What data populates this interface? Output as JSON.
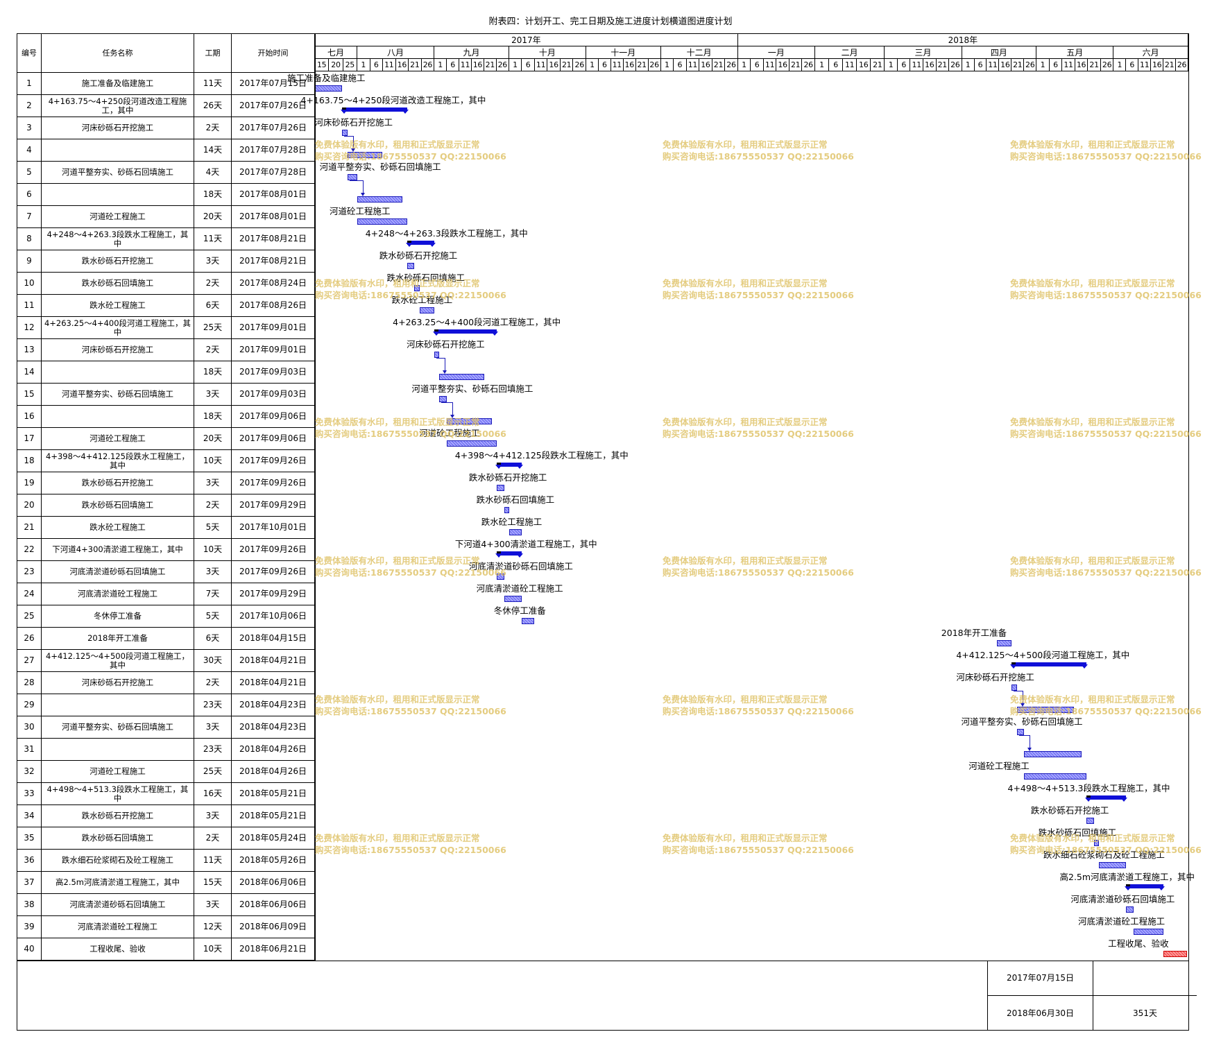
{
  "title": "附表四：计划开工、完工日期及施工进度计划横道图进度计划",
  "headers": {
    "no": "编号",
    "name": "任务名称",
    "duration": "工期",
    "start": "开始时间"
  },
  "years": [
    {
      "label": "2017年"
    },
    {
      "label": "2018年"
    }
  ],
  "months": [
    {
      "label": "七月",
      "days": [
        "15",
        "20",
        "25"
      ]
    },
    {
      "label": "八月",
      "days": [
        "1",
        "6",
        "11",
        "16",
        "21",
        "26"
      ]
    },
    {
      "label": "九月",
      "days": [
        "1",
        "6",
        "11",
        "16",
        "21",
        "26"
      ]
    },
    {
      "label": "十月",
      "days": [
        "1",
        "6",
        "11",
        "16",
        "21",
        "26"
      ]
    },
    {
      "label": "十一月",
      "days": [
        "1",
        "6",
        "11",
        "16",
        "21",
        "26"
      ]
    },
    {
      "label": "十二月",
      "days": [
        "1",
        "6",
        "11",
        "16",
        "21",
        "26"
      ]
    },
    {
      "label": "一月",
      "days": [
        "1",
        "6",
        "11",
        "16",
        "21",
        "26"
      ]
    },
    {
      "label": "二月",
      "days": [
        "1",
        "6",
        "11",
        "16",
        "21"
      ]
    },
    {
      "label": "三月",
      "days": [
        "1",
        "6",
        "11",
        "16",
        "21",
        "26"
      ]
    },
    {
      "label": "四月",
      "days": [
        "1",
        "6",
        "11",
        "16",
        "21",
        "26"
      ]
    },
    {
      "label": "五月",
      "days": [
        "1",
        "6",
        "11",
        "16",
        "21",
        "26"
      ]
    },
    {
      "label": "六月",
      "days": [
        "1",
        "6",
        "11",
        "16",
        "21",
        "26"
      ]
    }
  ],
  "chart_data": {
    "type": "gantt",
    "title": "附表四：计划开工、完工日期及施工进度计划横道图进度计划",
    "x_start": "2017-07-15",
    "x_end": "2018-06-30",
    "tasks": [
      {
        "id": "1",
        "name": "施工准备及临建施工",
        "bar_label": "施工准备及临建施工",
        "duration": "11天",
        "start": "2017年07月15日",
        "start_iso": "2017-07-15",
        "days": 11,
        "kind": "task",
        "label_side": "above"
      },
      {
        "id": "2",
        "name": "4+163.75～4+250段河道改造工程施工，其中",
        "bar_label": "4+163.75～4+250段河道改造工程施工，其中",
        "duration": "26天",
        "start": "2017年07月26日",
        "start_iso": "2017-07-26",
        "days": 26,
        "kind": "summary",
        "label_side": "above"
      },
      {
        "id": "3",
        "name": "河床砂砾石开挖施工",
        "bar_label": "河床砂砾石开挖施工",
        "duration": "2天",
        "start": "2017年07月26日",
        "start_iso": "2017-07-26",
        "days": 2,
        "kind": "task",
        "label_side": "above"
      },
      {
        "id": "4",
        "name": "",
        "bar_label": "",
        "duration": "14天",
        "start": "2017年07月28日",
        "start_iso": "2017-07-28",
        "days": 14,
        "kind": "task",
        "label_side": "none"
      },
      {
        "id": "5",
        "name": "河道平整夯实、砂砾石回填施工",
        "bar_label": "河道平整夯实、砂砾石回填施工",
        "duration": "4天",
        "start": "2017年07月28日",
        "start_iso": "2017-07-28",
        "days": 4,
        "kind": "task",
        "label_side": "above"
      },
      {
        "id": "6",
        "name": "",
        "bar_label": "",
        "duration": "18天",
        "start": "2017年08月01日",
        "start_iso": "2017-08-01",
        "days": 18,
        "kind": "task",
        "label_side": "none"
      },
      {
        "id": "7",
        "name": "河道砼工程施工",
        "bar_label": "河道砼工程施工",
        "duration": "20天",
        "start": "2017年08月01日",
        "start_iso": "2017-08-01",
        "days": 20,
        "kind": "task",
        "label_side": "above"
      },
      {
        "id": "8",
        "name": "4+248～4+263.3段跌水工程施工，其中",
        "bar_label": "4+248～4+263.3段跌水工程施工，其中",
        "duration": "11天",
        "start": "2017年08月21日",
        "start_iso": "2017-08-21",
        "days": 11,
        "kind": "summary",
        "label_side": "above"
      },
      {
        "id": "9",
        "name": "跌水砂砾石开挖施工",
        "bar_label": "跌水砂砾石开挖施工",
        "duration": "3天",
        "start": "2017年08月21日",
        "start_iso": "2017-08-21",
        "days": 3,
        "kind": "task",
        "label_side": "above"
      },
      {
        "id": "10",
        "name": "跌水砂砾石回填施工",
        "bar_label": "跌水砂砾石回填施工",
        "duration": "2天",
        "start": "2017年08月24日",
        "start_iso": "2017-08-24",
        "days": 2,
        "kind": "task",
        "label_side": "above"
      },
      {
        "id": "11",
        "name": "跌水砼工程施工",
        "bar_label": "跌水砼工程施工",
        "duration": "6天",
        "start": "2017年08月26日",
        "start_iso": "2017-08-26",
        "days": 6,
        "kind": "task",
        "label_side": "above"
      },
      {
        "id": "12",
        "name": "4+263.25～4+400段河道工程施工，其中",
        "bar_label": "4+263.25～4+400段河道工程施工，其中",
        "duration": "25天",
        "start": "2017年09月01日",
        "start_iso": "2017-09-01",
        "days": 25,
        "kind": "summary",
        "label_side": "above"
      },
      {
        "id": "13",
        "name": "河床砂砾石开挖施工",
        "bar_label": "河床砂砾石开挖施工",
        "duration": "2天",
        "start": "2017年09月01日",
        "start_iso": "2017-09-01",
        "days": 2,
        "kind": "task",
        "label_side": "above"
      },
      {
        "id": "14",
        "name": "",
        "bar_label": "",
        "duration": "18天",
        "start": "2017年09月03日",
        "start_iso": "2017-09-03",
        "days": 18,
        "kind": "task",
        "label_side": "none"
      },
      {
        "id": "15",
        "name": "河道平整夯实、砂砾石回填施工",
        "bar_label": "河道平整夯实、砂砾石回填施工",
        "duration": "3天",
        "start": "2017年09月03日",
        "start_iso": "2017-09-03",
        "days": 3,
        "kind": "task",
        "label_side": "above"
      },
      {
        "id": "16",
        "name": "",
        "bar_label": "",
        "duration": "18天",
        "start": "2017年09月06日",
        "start_iso": "2017-09-06",
        "days": 18,
        "kind": "task",
        "label_side": "none"
      },
      {
        "id": "17",
        "name": "河道砼工程施工",
        "bar_label": "河道砼工程施工",
        "duration": "20天",
        "start": "2017年09月06日",
        "start_iso": "2017-09-06",
        "days": 20,
        "kind": "task",
        "label_side": "above"
      },
      {
        "id": "18",
        "name": "4+398～4+412.125段跌水工程施工，其中",
        "bar_label": "4+398～4+412.125段跌水工程施工，其中",
        "duration": "10天",
        "start": "2017年09月26日",
        "start_iso": "2017-09-26",
        "days": 10,
        "kind": "summary",
        "label_side": "above"
      },
      {
        "id": "19",
        "name": "跌水砂砾石开挖施工",
        "bar_label": "跌水砂砾石开挖施工",
        "duration": "3天",
        "start": "2017年09月26日",
        "start_iso": "2017-09-26",
        "days": 3,
        "kind": "task",
        "label_side": "above"
      },
      {
        "id": "20",
        "name": "跌水砂砾石回填施工",
        "bar_label": "跌水砂砾石回填施工",
        "duration": "2天",
        "start": "2017年09月29日",
        "start_iso": "2017-09-29",
        "days": 2,
        "kind": "task",
        "label_side": "above"
      },
      {
        "id": "21",
        "name": "跌水砼工程施工",
        "bar_label": "跌水砼工程施工",
        "duration": "5天",
        "start": "2017年10月01日",
        "start_iso": "2017-10-01",
        "days": 5,
        "kind": "task",
        "label_side": "above"
      },
      {
        "id": "22",
        "name": "下河道4+300清淤道工程施工，其中",
        "bar_label": "下河道4+300清淤道工程施工，其中",
        "duration": "10天",
        "start": "2017年09月26日",
        "start_iso": "2017-09-26",
        "days": 10,
        "kind": "summary",
        "label_side": "above"
      },
      {
        "id": "23",
        "name": "河底清淤道砂砾石回填施工",
        "bar_label": "河底清淤道砂砾石回填施工",
        "duration": "3天",
        "start": "2017年09月26日",
        "start_iso": "2017-09-26",
        "days": 3,
        "kind": "task",
        "label_side": "above"
      },
      {
        "id": "24",
        "name": "河底清淤道砼工程施工",
        "bar_label": "河底清淤道砼工程施工",
        "duration": "7天",
        "start": "2017年09月29日",
        "start_iso": "2017-09-29",
        "days": 7,
        "kind": "task",
        "label_side": "above"
      },
      {
        "id": "25",
        "name": "冬休停工准备",
        "bar_label": "冬休停工准备",
        "duration": "5天",
        "start": "2017年10月06日",
        "start_iso": "2017-10-06",
        "days": 5,
        "kind": "task",
        "label_side": "above"
      },
      {
        "id": "26",
        "name": "2018年开工准备",
        "bar_label": "2018年开工准备",
        "duration": "6天",
        "start": "2018年04月15日",
        "start_iso": "2018-04-15",
        "days": 6,
        "kind": "task",
        "label_side": "above"
      },
      {
        "id": "27",
        "name": "4+412.125～4+500段河道工程施工，其中",
        "bar_label": "4+412.125～4+500段河道工程施工，其中",
        "duration": "30天",
        "start": "2018年04月21日",
        "start_iso": "2018-04-21",
        "days": 30,
        "kind": "summary",
        "label_side": "above"
      },
      {
        "id": "28",
        "name": "河床砂砾石开挖施工",
        "bar_label": "河床砂砾石开挖施工",
        "duration": "2天",
        "start": "2018年04月21日",
        "start_iso": "2018-04-21",
        "days": 2,
        "kind": "task",
        "label_side": "above"
      },
      {
        "id": "29",
        "name": "",
        "bar_label": "",
        "duration": "23天",
        "start": "2018年04月23日",
        "start_iso": "2018-04-23",
        "days": 23,
        "kind": "task",
        "label_side": "none"
      },
      {
        "id": "30",
        "name": "河道平整夯实、砂砾石回填施工",
        "bar_label": "河道平整夯实、砂砾石回填施工",
        "duration": "3天",
        "start": "2018年04月23日",
        "start_iso": "2018-04-23",
        "days": 3,
        "kind": "task",
        "label_side": "above"
      },
      {
        "id": "31",
        "name": "",
        "bar_label": "",
        "duration": "23天",
        "start": "2018年04月26日",
        "start_iso": "2018-04-26",
        "days": 23,
        "kind": "task",
        "label_side": "none"
      },
      {
        "id": "32",
        "name": "河道砼工程施工",
        "bar_label": "河道砼工程施工",
        "duration": "25天",
        "start": "2018年04月26日",
        "start_iso": "2018-04-26",
        "days": 25,
        "kind": "task",
        "label_side": "above"
      },
      {
        "id": "33",
        "name": "4+498～4+513.3段跌水工程施工，其中",
        "bar_label": "4+498～4+513.3段跌水工程施工，其中",
        "duration": "16天",
        "start": "2018年05月21日",
        "start_iso": "2018-05-21",
        "days": 16,
        "kind": "summary",
        "label_side": "above"
      },
      {
        "id": "34",
        "name": "跌水砂砾石开挖施工",
        "bar_label": "跌水砂砾石开挖施工",
        "duration": "3天",
        "start": "2018年05月21日",
        "start_iso": "2018-05-21",
        "days": 3,
        "kind": "task",
        "label_side": "above"
      },
      {
        "id": "35",
        "name": "跌水砂砾石回填施工",
        "bar_label": "跌水砂砾石回填施工",
        "duration": "2天",
        "start": "2018年05月24日",
        "start_iso": "2018-05-24",
        "days": 2,
        "kind": "task",
        "label_side": "above"
      },
      {
        "id": "36",
        "name": "跌水细石砼浆砌石及砼工程施工",
        "bar_label": "跌水细石砼浆砌石及砼工程施工",
        "duration": "11天",
        "start": "2018年05月26日",
        "start_iso": "2018-05-26",
        "days": 11,
        "kind": "task",
        "label_side": "above"
      },
      {
        "id": "37",
        "name": "高2.5m河底清淤道工程施工，其中",
        "bar_label": "高2.5m河底清淤道工程施工，其中",
        "duration": "15天",
        "start": "2018年06月06日",
        "start_iso": "2018-06-06",
        "days": 15,
        "kind": "summary",
        "label_side": "above"
      },
      {
        "id": "38",
        "name": "河底清淤道砂砾石回填施工",
        "bar_label": "河底清淤道砂砾石回填施工",
        "duration": "3天",
        "start": "2018年06月06日",
        "start_iso": "2018-06-06",
        "days": 3,
        "kind": "task",
        "label_side": "above"
      },
      {
        "id": "39",
        "name": "河底清淤道砼工程施工",
        "bar_label": "河底清淤道砼工程施工",
        "duration": "12天",
        "start": "2018年06月09日",
        "start_iso": "2018-06-09",
        "days": 12,
        "kind": "task",
        "label_side": "above"
      },
      {
        "id": "40",
        "name": "工程收尾、验收",
        "bar_label": "工程收尾、验收",
        "duration": "10天",
        "start": "2018年06月21日",
        "start_iso": "2018-06-21",
        "days": 10,
        "kind": "final",
        "label_side": "above"
      }
    ]
  },
  "watermark": {
    "line1": "免费体验版有水印，租用和正式版显示正常",
    "line2": "购买咨询电话:18675550537 QQ:22150066"
  },
  "footer": {
    "start_date": "2017年07月15日",
    "end_date": "2018年06月30日",
    "total": "351天"
  },
  "colors": {
    "bar": "#8a8aff",
    "summary": "#1010d8",
    "final": "#ff6b6b",
    "watermark": "#e0c46a"
  }
}
